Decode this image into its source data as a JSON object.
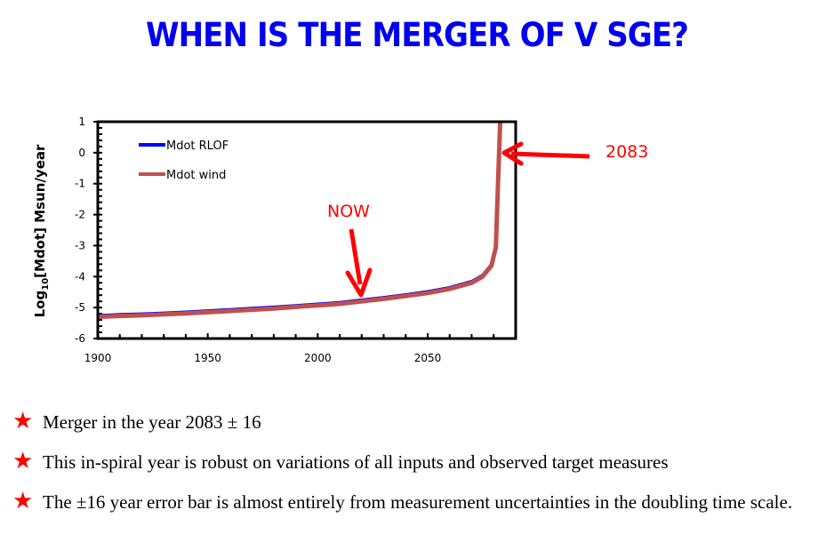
{
  "slide": {
    "title": "WHEN IS THE MERGER OF V SGE?",
    "annotations": {
      "now_label": "NOW",
      "merger_label": "2083"
    },
    "bullets": [
      {
        "icon": "star-icon",
        "text": "Merger in the year 2083 ± 16"
      },
      {
        "icon": "star-icon",
        "text": "This in-spiral year is robust on variations of all inputs and observed target measures"
      },
      {
        "icon": "star-icon",
        "text": "The ±16 year error bar is almost entirely from measurement uncertainties in the doubling time scale."
      }
    ],
    "colors": {
      "title": "#0000ee",
      "annotation": "#ff0000",
      "rlof": "#0000ff",
      "wind": "#c0504d"
    }
  },
  "chart_data": {
    "type": "line",
    "title": "",
    "xlabel": "",
    "ylabel": "Log10[Mdot]  Msun/year",
    "xlim": [
      1900,
      2090
    ],
    "ylim": [
      -6,
      1
    ],
    "x_ticks": [
      "1900",
      "1950",
      "2000",
      "2050"
    ],
    "y_ticks": [
      "1",
      "0",
      "-1",
      "-2",
      "-3",
      "-4",
      "-5",
      "-6"
    ],
    "grid": false,
    "legend_position": "upper left",
    "x": [
      1900,
      1910,
      1920,
      1930,
      1940,
      1950,
      1960,
      1970,
      1980,
      1990,
      2000,
      2010,
      2020,
      2030,
      2040,
      2050,
      2060,
      2070,
      2075,
      2079,
      2081,
      2082,
      2083
    ],
    "series": [
      {
        "name": "Mdot RLOF",
        "color": "#0000ff",
        "values": [
          -5.25,
          -5.22,
          -5.2,
          -5.17,
          -5.14,
          -5.1,
          -5.06,
          -5.02,
          -4.98,
          -4.93,
          -4.88,
          -4.83,
          -4.75,
          -4.67,
          -4.58,
          -4.48,
          -4.35,
          -4.15,
          -3.95,
          -3.6,
          -3.0,
          -1.0,
          1.0
        ]
      },
      {
        "name": "Mdot wind",
        "color": "#c0504d",
        "values": [
          -5.3,
          -5.27,
          -5.25,
          -5.22,
          -5.19,
          -5.15,
          -5.11,
          -5.07,
          -5.03,
          -4.98,
          -4.93,
          -4.88,
          -4.8,
          -4.72,
          -4.63,
          -4.53,
          -4.4,
          -4.2,
          -4.0,
          -3.65,
          -3.05,
          -1.0,
          1.0
        ]
      }
    ],
    "annotations": [
      {
        "text": "NOW",
        "x": 2019,
        "y": -4.8,
        "arrow": "down"
      },
      {
        "text": "2083",
        "x": 2083,
        "y": 0,
        "arrow": "left"
      }
    ]
  }
}
